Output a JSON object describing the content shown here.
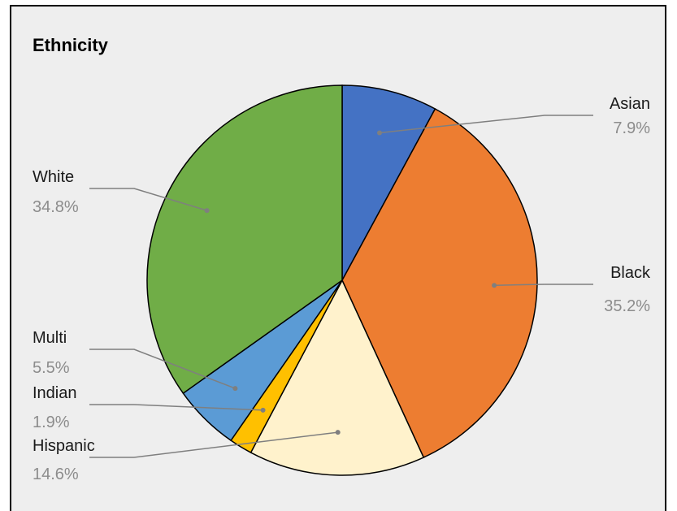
{
  "chart_data": {
    "type": "pie",
    "title": "Ethnicity",
    "categories": [
      "Asian",
      "Black",
      "Hispanic",
      "Indian",
      "Multi",
      "White"
    ],
    "values": [
      7.9,
      35.2,
      14.6,
      1.9,
      5.5,
      34.8
    ],
    "value_labels": [
      "7.9%",
      "35.2%",
      "14.6%",
      "1.9%",
      "5.5%",
      "34.8%"
    ],
    "colors": [
      "#4472c4",
      "#ed7d31",
      "#fff2cc",
      "#ffc000",
      "#5b9bd5",
      "#70ad47"
    ],
    "start": "12 o'clock",
    "direction": "clockwise",
    "legend": "none",
    "labels": "outside with leader lines"
  }
}
